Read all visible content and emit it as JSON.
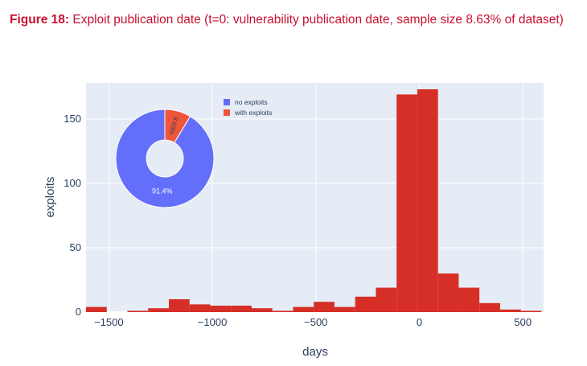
{
  "caption": {
    "label": "Figure 18:",
    "text": "Exploit publication date (t=0: vulnerability publication date, sample size 8.63% of dataset)"
  },
  "chart_data": [
    {
      "type": "bar",
      "subtype": "histogram",
      "xlabel": "days",
      "ylabel": "exploits",
      "xlim": [
        -1610,
        600
      ],
      "ylim": [
        0,
        178
      ],
      "x_ticks": [
        -1500,
        -1000,
        -500,
        0,
        500
      ],
      "x_tick_labels": [
        "−1500",
        "−1000",
        "−500",
        "0",
        "500"
      ],
      "y_ticks": [
        0,
        50,
        100,
        150
      ],
      "y_tick_labels": [
        "0",
        "50",
        "100",
        "150"
      ],
      "bin_width": 100,
      "bin_starts": [
        -1610,
        -1510,
        -1410,
        -1310,
        -1210,
        -1110,
        -1010,
        -910,
        -810,
        -710,
        -610,
        -510,
        -410,
        -310,
        -210,
        -110,
        -10,
        90,
        190,
        290,
        390,
        490
      ],
      "values": [
        4,
        0,
        1,
        3,
        10,
        6,
        5,
        5,
        3,
        1,
        4,
        8,
        4,
        12,
        19,
        169,
        173,
        30,
        19,
        7,
        2,
        1
      ],
      "color": "#d62f27",
      "plot_bgcolor": "#e5ecf6",
      "grid": true
    },
    {
      "type": "pie",
      "hole": true,
      "slices": [
        {
          "label": "no exploits",
          "value": 91.37,
          "text": "91.4%",
          "color": "#636efa"
        },
        {
          "label": "with exploits",
          "value": 8.63,
          "text": "8.63%",
          "color": "#ef553b"
        }
      ],
      "legend_position": "top-right of pie"
    }
  ]
}
